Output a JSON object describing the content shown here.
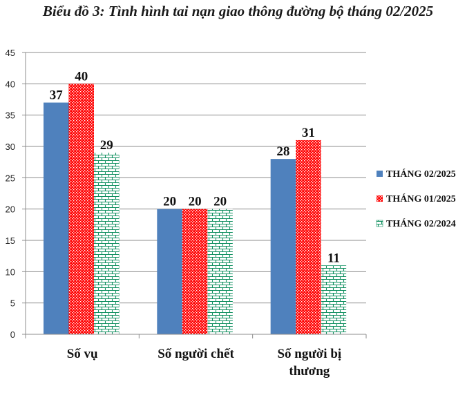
{
  "chart_data": {
    "type": "bar",
    "title": "Biểu đồ 3: Tình hình tai nạn giao thông đường bộ tháng 02/2025",
    "categories": [
      "Số vụ",
      "Số người chết",
      "Số người bị thương"
    ],
    "category_lines": [
      [
        "Số vụ"
      ],
      [
        "Số người chết"
      ],
      [
        "Số người bị",
        "thương"
      ]
    ],
    "series": [
      {
        "name": "THÁNG 02/2025",
        "values": [
          37,
          20,
          28
        ],
        "color": "#4f81bd",
        "pattern": "solid"
      },
      {
        "name": "THÁNG 01/2025",
        "values": [
          40,
          20,
          31
        ],
        "color": "#ff0000",
        "pattern": "dots"
      },
      {
        "name": "THÁNG 02/2024",
        "values": [
          29,
          20,
          11
        ],
        "color": "#0f8f5f",
        "pattern": "bricks"
      }
    ],
    "ylim": [
      0,
      45
    ],
    "yticks": [
      0,
      5,
      10,
      15,
      20,
      25,
      30,
      35,
      40,
      45
    ],
    "grid": true,
    "legend": "right",
    "xlabel": "",
    "ylabel": ""
  }
}
